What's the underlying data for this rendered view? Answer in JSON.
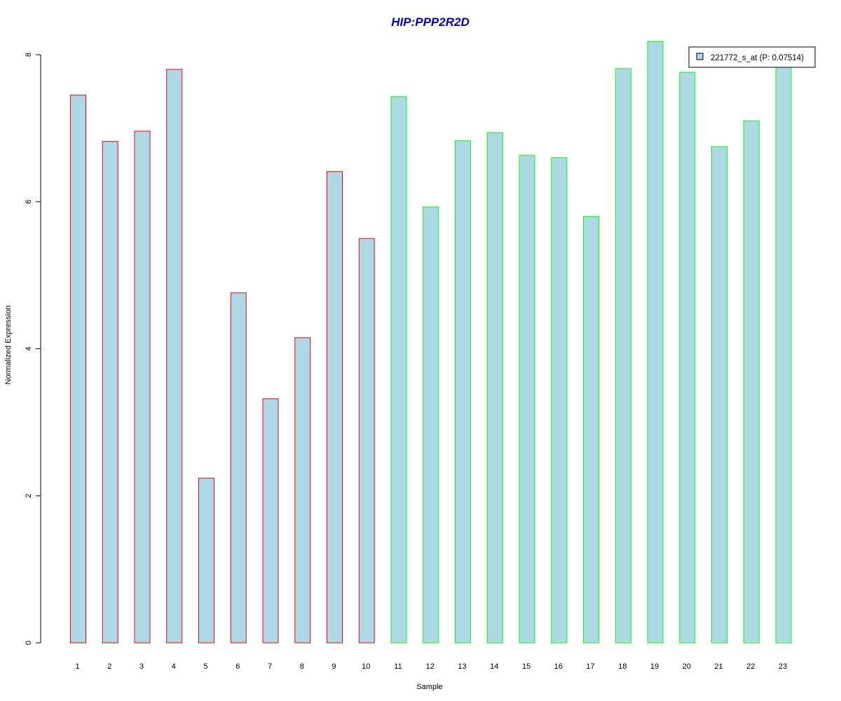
{
  "chart_data": {
    "type": "bar",
    "title": "HIP:PPP2R2D",
    "xlabel": "Sample",
    "ylabel": "Normalized Expression",
    "categories": [
      "1",
      "2",
      "3",
      "4",
      "5",
      "6",
      "7",
      "8",
      "9",
      "10",
      "11",
      "12",
      "13",
      "14",
      "15",
      "16",
      "17",
      "18",
      "19",
      "20",
      "21",
      "22",
      "23"
    ],
    "series": [
      {
        "name": "221772_s_at (P: 0.07514)",
        "values": [
          7.45,
          6.82,
          6.96,
          7.8,
          2.24,
          4.76,
          3.32,
          4.15,
          6.41,
          5.5,
          7.43,
          5.93,
          6.83,
          6.94,
          6.63,
          6.6,
          5.8,
          7.81,
          8.18,
          7.76,
          6.75,
          7.1,
          7.9
        ]
      }
    ],
    "bar_fill": "#add8e6",
    "group_border_colors": [
      "#ff0000",
      "#ff0000",
      "#ff0000",
      "#ff0000",
      "#ff0000",
      "#ff0000",
      "#ff0000",
      "#ff0000",
      "#ff0000",
      "#ff0000",
      "#00ff00",
      "#00ff00",
      "#00ff00",
      "#00ff00",
      "#00ff00",
      "#00ff00",
      "#00ff00",
      "#00ff00",
      "#00ff00",
      "#00ff00",
      "#00ff00",
      "#00ff00",
      "#00ff00"
    ],
    "title_color": "#0000cd",
    "yticks": [
      "0",
      "2",
      "4",
      "6",
      "8"
    ],
    "ylim": [
      0,
      8.2
    ],
    "legend_position": "top-right",
    "grid": false
  }
}
